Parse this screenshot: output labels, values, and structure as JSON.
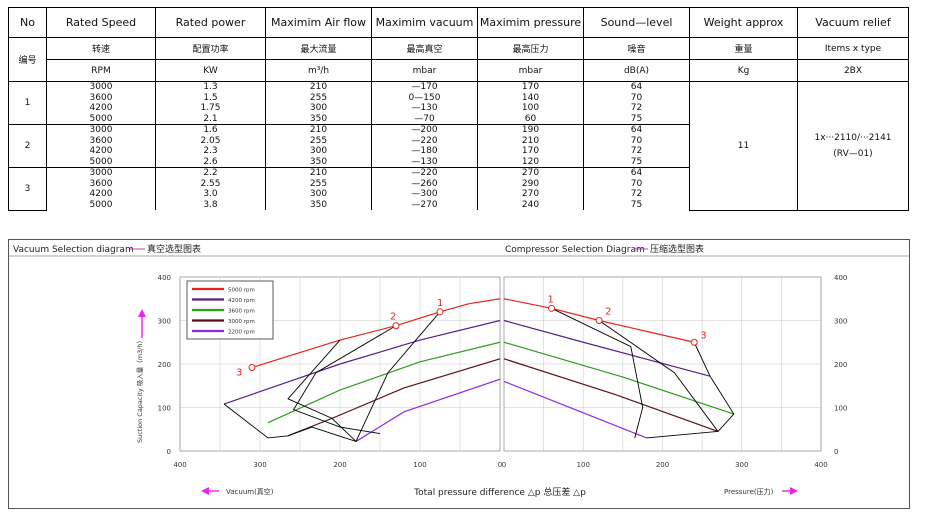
{
  "table": {
    "headers": [
      "No",
      "Rated Speed",
      "Rated power",
      "Maximim Air flow",
      "Maximim vacuum",
      "Maximim pressure",
      "Sound—level",
      "Weight approx",
      "Vacuum relief"
    ],
    "headers_cn": [
      "编号",
      "转速",
      "配置功率",
      "最大流量",
      "最高真空",
      "最高压力",
      "噪音",
      "重量",
      "Items x type"
    ],
    "units": [
      "RPM",
      "KW",
      "m³/h",
      "mbar",
      "mbar",
      "dB(A)",
      "Kg",
      "2BX"
    ],
    "groups": [
      {
        "no": "1",
        "rows": [
          [
            "3000",
            "1.3",
            "210",
            "—170",
            "170",
            "64"
          ],
          [
            "3600",
            "1.5",
            "255",
            "0—150",
            "140",
            "70"
          ],
          [
            "4200",
            "1.75",
            "300",
            "—130",
            "100",
            "72"
          ],
          [
            "5000",
            "2.1",
            "350",
            "—70",
            "60",
            "75"
          ]
        ]
      },
      {
        "no": "2",
        "rows": [
          [
            "3000",
            "1.6",
            "210",
            "—200",
            "190",
            "64"
          ],
          [
            "3600",
            "2.05",
            "255",
            "—220",
            "210",
            "70"
          ],
          [
            "4200",
            "2.3",
            "300",
            "—180",
            "170",
            "72"
          ],
          [
            "5000",
            "2.6",
            "350",
            "—130",
            "120",
            "75"
          ]
        ]
      },
      {
        "no": "3",
        "rows": [
          [
            "3000",
            "2.2",
            "210",
            "—220",
            "270",
            "64"
          ],
          [
            "3600",
            "2.55",
            "255",
            "—260",
            "290",
            "70"
          ],
          [
            "4200",
            "3.0",
            "300",
            "—300",
            "270",
            "72"
          ],
          [
            "5000",
            "3.8",
            "350",
            "—270",
            "240",
            "75"
          ]
        ]
      }
    ],
    "weight": "11",
    "relief_line1": "1x···2110/···2141",
    "relief_line2": "(RV—01)"
  },
  "chart_data": {
    "type": "line",
    "vacuum_title": "Vacuum Selection diagram",
    "vacuum_title_cn": "真空选型图表",
    "pressure_title": "Compressor Selection Diagram",
    "pressure_title_cn": "压缩选型图表",
    "xlabel": "Total pressure difference △p 总压差 △p",
    "ylabel": "Suction Capacity 吸入量（m3/h）",
    "vacuum_arrow_label": "Vacuum(真空)",
    "pressure_arrow_label": "Pressure(压力)",
    "x_left_ticks": [
      "400",
      "300",
      "200",
      "100",
      "0"
    ],
    "x_right_ticks": [
      "0",
      "100",
      "200",
      "300",
      "400"
    ],
    "y_ticks": [
      "0",
      "100",
      "200",
      "300",
      "400"
    ],
    "xlim": [
      0,
      400
    ],
    "ylim": [
      0,
      400
    ],
    "grid": true,
    "legend_position": "top-left",
    "series": [
      {
        "name": "5000 rpm",
        "color": "#e8231c",
        "vacuum": [
          [
            0,
            350
          ],
          [
            40,
            338
          ],
          [
            75,
            320
          ],
          [
            130,
            288
          ],
          [
            200,
            255
          ],
          [
            310,
            192
          ]
        ],
        "pressure": [
          [
            0,
            350
          ],
          [
            60,
            328
          ],
          [
            120,
            300
          ],
          [
            240,
            250
          ]
        ]
      },
      {
        "name": "4200 rpm",
        "color": "#5a1e8a",
        "vacuum": [
          [
            0,
            300
          ],
          [
            100,
            255
          ],
          [
            200,
            200
          ],
          [
            345,
            108
          ]
        ],
        "pressure": [
          [
            0,
            300
          ],
          [
            100,
            250
          ],
          [
            260,
            172
          ]
        ]
      },
      {
        "name": "3600 rpm",
        "color": "#2e9e1d",
        "vacuum": [
          [
            0,
            250
          ],
          [
            100,
            205
          ],
          [
            200,
            140
          ],
          [
            290,
            65
          ]
        ],
        "pressure": [
          [
            0,
            250
          ],
          [
            150,
            170
          ],
          [
            290,
            85
          ]
        ]
      },
      {
        "name": "3000 rpm",
        "color": "#5c1010",
        "vacuum": [
          [
            0,
            212
          ],
          [
            120,
            145
          ],
          [
            210,
            75
          ],
          [
            265,
            35
          ]
        ],
        "pressure": [
          [
            0,
            212
          ],
          [
            140,
            130
          ],
          [
            270,
            45
          ]
        ]
      },
      {
        "name": "2200 rpm",
        "color": "#8b2be2",
        "vacuum": [
          [
            0,
            165
          ],
          [
            120,
            90
          ],
          [
            180,
            22
          ]
        ],
        "pressure": [
          [
            0,
            160
          ],
          [
            90,
            95
          ],
          [
            180,
            30
          ]
        ]
      }
    ],
    "limit_lines": {
      "color": "#000000",
      "vacuum": [
        [
          [
            75,
            320
          ],
          [
            140,
            180
          ],
          [
            180,
            22
          ],
          [
            235,
            55
          ],
          [
            265,
            35
          ],
          [
            290,
            30
          ],
          [
            345,
            108
          ]
        ],
        [
          [
            130,
            288
          ],
          [
            230,
            180
          ],
          [
            258,
            95
          ],
          [
            200,
            55
          ],
          [
            150,
            40
          ]
        ],
        [
          [
            200,
            255
          ],
          [
            265,
            120
          ],
          [
            210,
            75
          ],
          [
            180,
            22
          ]
        ]
      ],
      "pressure": [
        [
          [
            60,
            328
          ],
          [
            160,
            240
          ],
          [
            175,
            100
          ],
          [
            165,
            30
          ]
        ],
        [
          [
            120,
            300
          ],
          [
            215,
            180
          ],
          [
            270,
            45
          ],
          [
            180,
            30
          ]
        ],
        [
          [
            240,
            250
          ],
          [
            260,
            172
          ],
          [
            290,
            85
          ],
          [
            270,
            45
          ]
        ]
      ]
    },
    "markers": {
      "vacuum": [
        {
          "label": "1",
          "x": 75,
          "y": 320
        },
        {
          "label": "2",
          "x": 130,
          "y": 288
        },
        {
          "label": "3",
          "x": 310,
          "y": 192
        }
      ],
      "pressure": [
        {
          "label": "1",
          "x": 60,
          "y": 328
        },
        {
          "label": "2",
          "x": 120,
          "y": 300
        },
        {
          "label": "3",
          "x": 240,
          "y": 250
        }
      ]
    }
  }
}
